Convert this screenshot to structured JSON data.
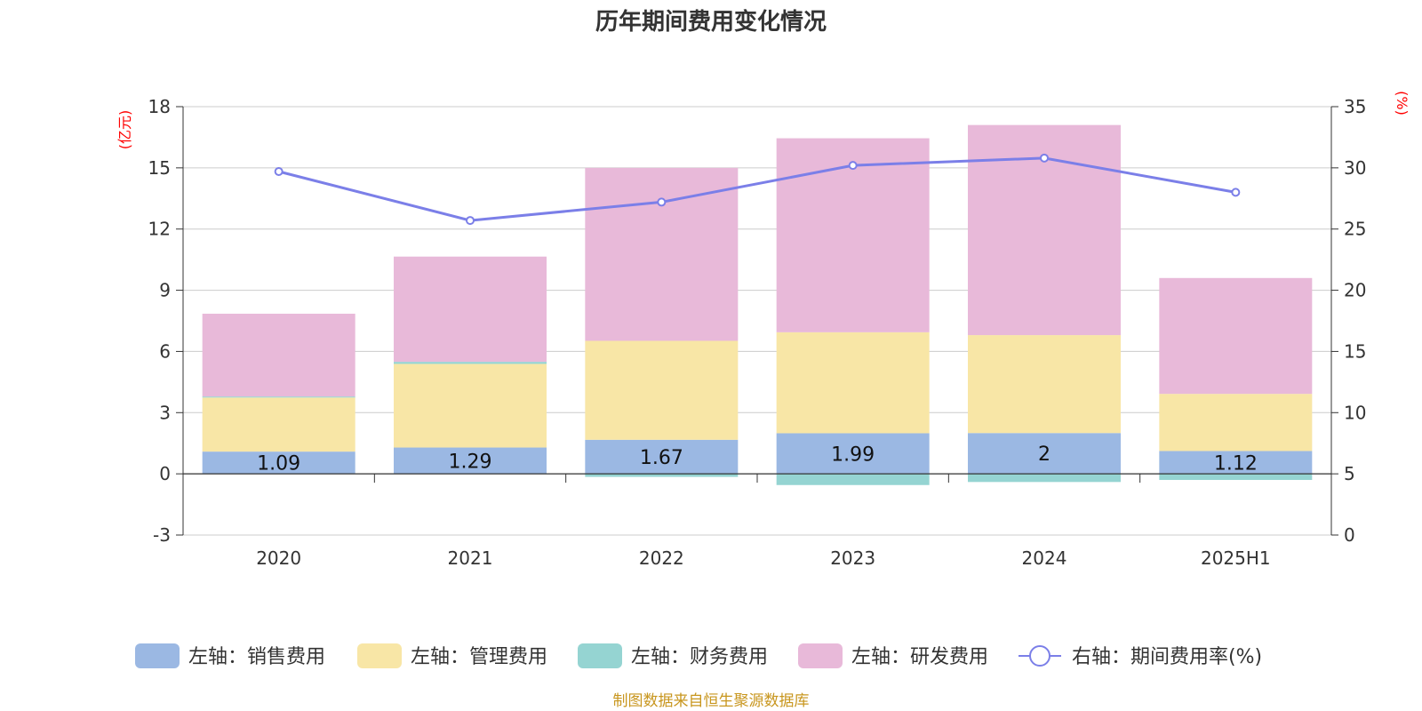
{
  "chart_data": {
    "type": "bar",
    "title": "历年期间费用变化情况",
    "categories": [
      "2020",
      "2021",
      "2022",
      "2023",
      "2024",
      "2025H1"
    ],
    "left_axis": {
      "unit": "(亿元)",
      "ylim": [
        -3,
        18
      ],
      "ticks": [
        -3,
        0,
        3,
        6,
        9,
        12,
        15,
        18
      ]
    },
    "right_axis": {
      "unit": "(%)",
      "ylim": [
        0,
        35
      ],
      "ticks": [
        0,
        5,
        10,
        15,
        20,
        25,
        30,
        35
      ]
    },
    "stacked": true,
    "series": [
      {
        "name": "左轴：销售费用",
        "axis": "left",
        "color": "#9bb8e3",
        "values": [
          1.09,
          1.29,
          1.67,
          1.99,
          2.0,
          1.12
        ],
        "labels": [
          "1.09",
          "1.29",
          "1.67",
          "1.99",
          "2",
          "1.12"
        ]
      },
      {
        "name": "左轴：管理费用",
        "axis": "left",
        "color": "#f8e6a6",
        "values": [
          2.65,
          4.1,
          4.85,
          4.95,
          4.8,
          2.8
        ]
      },
      {
        "name": "左轴：财务费用",
        "axis": "left",
        "color": "#95d4d2",
        "values": [
          0.05,
          0.1,
          -0.15,
          -0.55,
          -0.4,
          -0.3
        ]
      },
      {
        "name": "左轴：研发费用",
        "axis": "left",
        "color": "#e8b9d9",
        "values": [
          4.06,
          5.16,
          8.48,
          9.51,
          10.3,
          5.68
        ]
      },
      {
        "name": "右轴：期间费用率(%)",
        "axis": "right",
        "type": "line",
        "color": "#7b7fe8",
        "values": [
          29.7,
          25.7,
          27.2,
          30.2,
          30.8,
          28.0
        ]
      }
    ],
    "grid": true,
    "legend_position": "bottom"
  },
  "footer": {
    "source": "制图数据来自恒生聚源数据库"
  }
}
